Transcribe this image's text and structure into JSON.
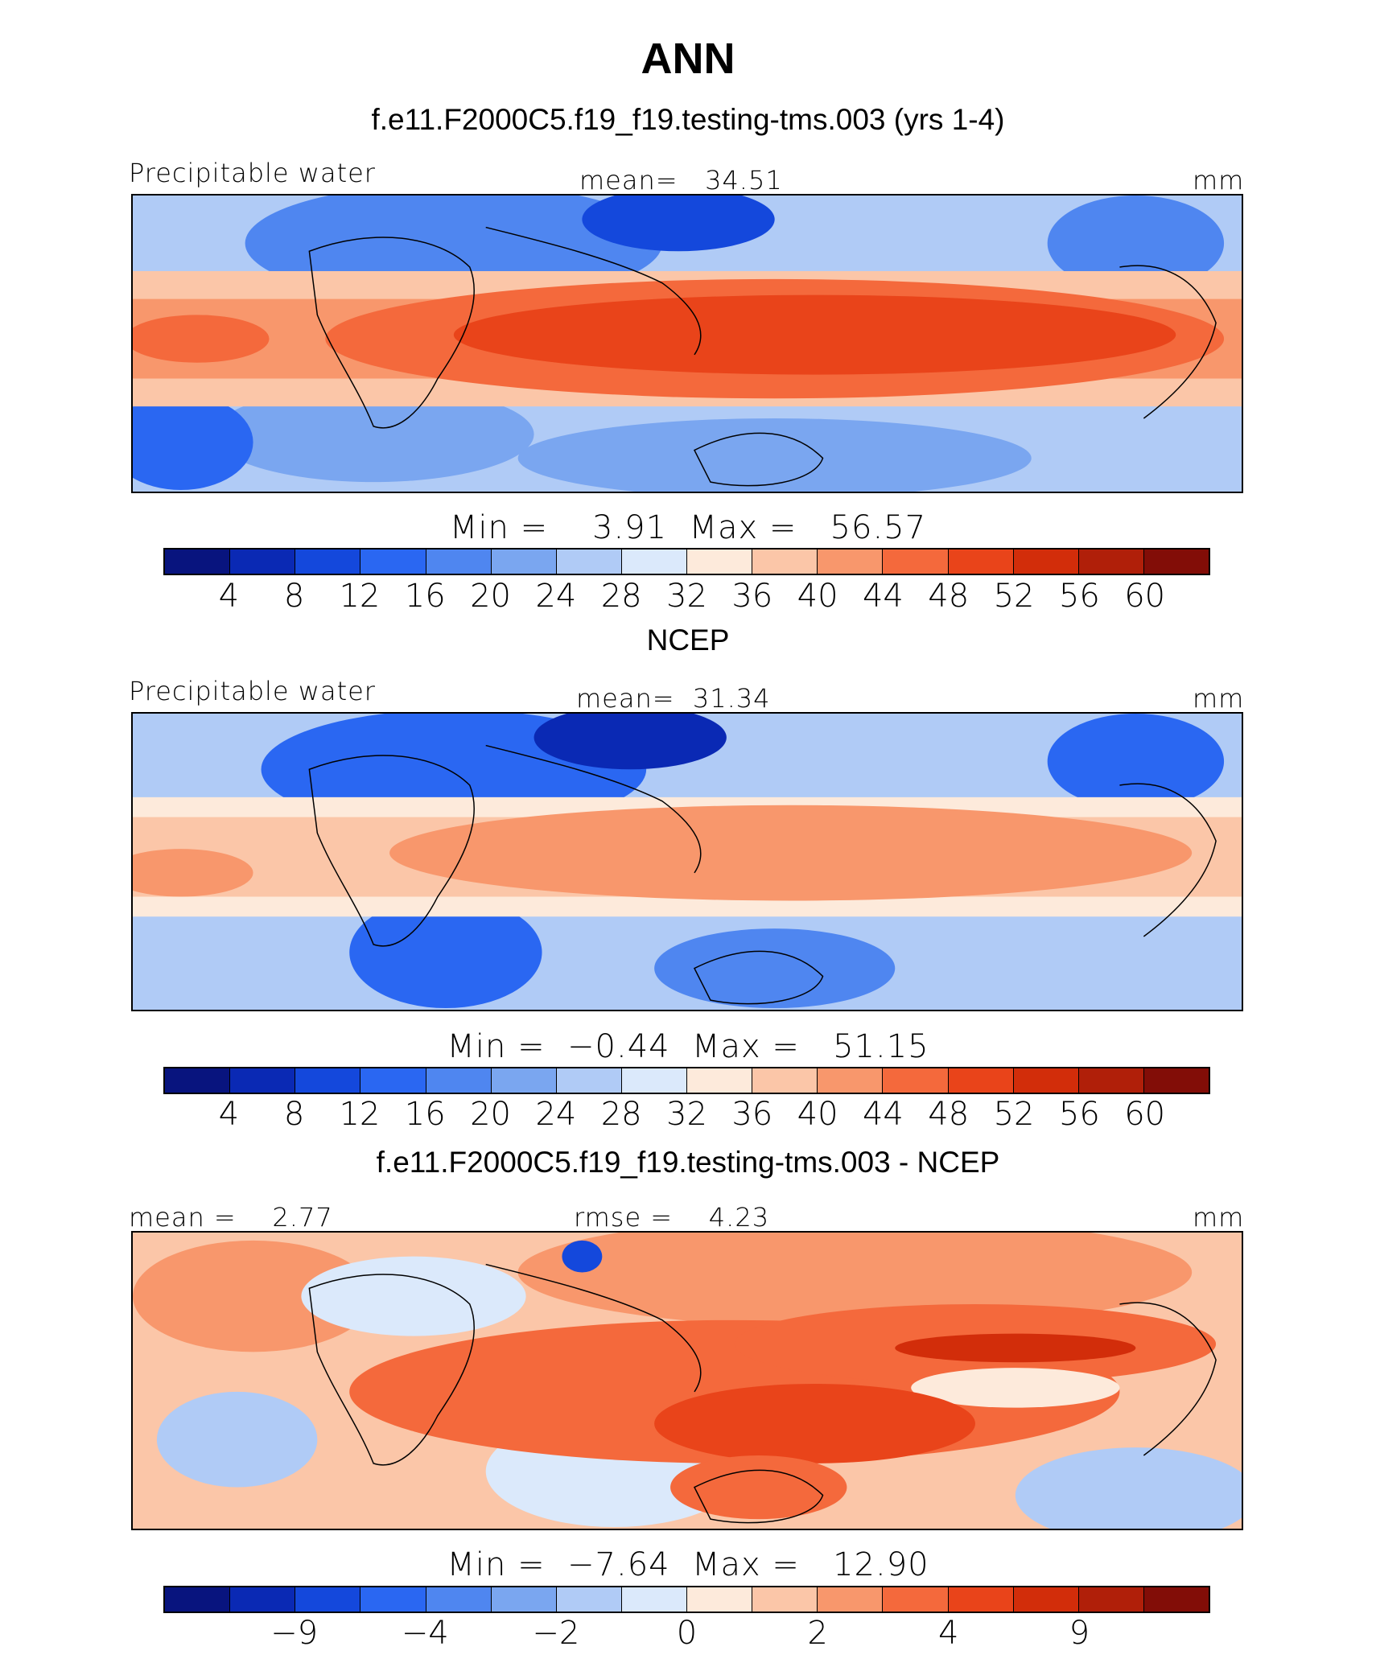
{
  "main_title": "ANN",
  "colors": [
    "#08147e",
    "#0a29b4",
    "#1448dc",
    "#2a67f2",
    "#4f86f0",
    "#7aa6f0",
    "#b0cbf6",
    "#dbe9fb",
    "#fdeadb",
    "#fbc6a8",
    "#f8976c",
    "#f4693c",
    "#e9441a",
    "#d22d0a",
    "#b01f09",
    "#820d07"
  ],
  "panels": [
    {
      "title": "f.e11.F2000C5.f19_f19.testing-tms.003 (yrs 1-4)",
      "left_label": "Precipitable water",
      "center_label": "mean=   34.51",
      "right_label": "mm",
      "minmax": "Min =    3.91  Max =   56.57",
      "ticks": [
        "4",
        "8",
        "12",
        "16",
        "20",
        "24",
        "28",
        "32",
        "36",
        "40",
        "44",
        "48",
        "52",
        "56",
        "60"
      ]
    },
    {
      "title": "NCEP",
      "left_label": "Precipitable water",
      "center_label": "mean=  31.34",
      "right_label": "mm",
      "minmax": "Min =  −0.44  Max =   51.15",
      "ticks": [
        "4",
        "8",
        "12",
        "16",
        "20",
        "24",
        "28",
        "32",
        "36",
        "40",
        "44",
        "48",
        "52",
        "56",
        "60"
      ]
    },
    {
      "title": "f.e11.F2000C5.f19_f19.testing-tms.003 - NCEP",
      "left_label": "mean =    2.77",
      "center_label": "rmse =    4.23",
      "right_label": "mm",
      "minmax": "Min =  −7.64  Max =   12.90",
      "ticks": [
        "−9",
        "−4",
        "−2",
        "0",
        "2",
        "4",
        "9"
      ]
    }
  ],
  "chart_data": [
    {
      "type": "heatmap",
      "title": "f.e11.F2000C5.f19_f19.testing-tms.003 (yrs 1-4)",
      "variable": "Precipitable water",
      "units": "mm",
      "mean": 34.51,
      "min": 3.91,
      "max": 56.57,
      "contour_levels": [
        4,
        8,
        12,
        16,
        20,
        24,
        28,
        32,
        36,
        40,
        44,
        48,
        52,
        56,
        60
      ]
    },
    {
      "type": "heatmap",
      "title": "NCEP",
      "variable": "Precipitable water",
      "units": "mm",
      "mean": 31.34,
      "min": -0.44,
      "max": 51.15,
      "contour_levels": [
        4,
        8,
        12,
        16,
        20,
        24,
        28,
        32,
        36,
        40,
        44,
        48,
        52,
        56,
        60
      ]
    },
    {
      "type": "heatmap",
      "title": "f.e11.F2000C5.f19_f19.testing-tms.003 - NCEP",
      "units": "mm",
      "mean": 2.77,
      "rmse": 4.23,
      "min": -7.64,
      "max": 12.9,
      "contour_levels": [
        -9,
        -4,
        -2,
        0,
        2,
        4,
        9
      ]
    }
  ]
}
